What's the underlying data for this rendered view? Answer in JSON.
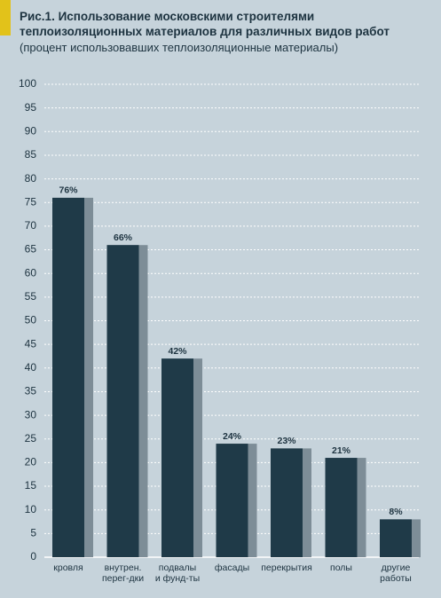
{
  "chart_data": {
    "type": "bar",
    "title": "Рис.1. Использование московскими строителями\nтеплоизоляционных материалов для различных видов работ",
    "subtitle": "(процент использовавших теплоизоляционные материалы)",
    "categories": [
      "кровля",
      "внутрен.\nперег-дки",
      "подвалы\nи фунд-ты",
      "фасады",
      "перекрытия",
      "полы",
      "другие\nработы"
    ],
    "values": [
      76,
      66,
      42,
      24,
      23,
      21,
      8
    ],
    "value_labels": [
      "76%",
      "66%",
      "42%",
      "24%",
      "23%",
      "21%",
      "8%"
    ],
    "color": "#1f3a48",
    "shadow_color": "#7d8d97",
    "ylim": [
      0,
      100
    ],
    "yticks": [
      0,
      5,
      10,
      15,
      20,
      25,
      30,
      35,
      40,
      45,
      50,
      55,
      60,
      65,
      70,
      75,
      80,
      85,
      90,
      95,
      100
    ],
    "grid": true
  }
}
